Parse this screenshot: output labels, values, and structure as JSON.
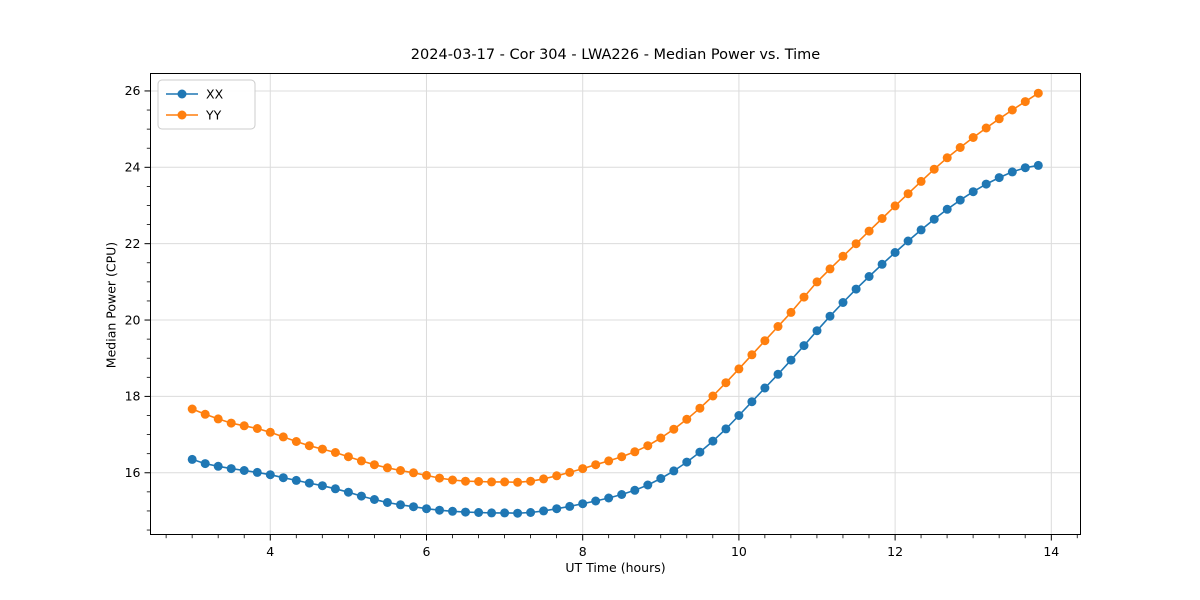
{
  "figure": {
    "background": "#ffffff",
    "text_color": "#000000",
    "grid_color": "#dcdcdc",
    "spine_color": "#000000",
    "legend": {
      "entries": [
        "XX",
        "YY"
      ],
      "position": "upper left",
      "facecolor": "#ffffff",
      "edgecolor": "#cccccc"
    }
  },
  "chart_data": {
    "type": "line",
    "title": "2024-03-17 - Cor 304 - LWA226 - Median Power vs. Time",
    "xlabel": "UT Time (hours)",
    "ylabel": "Median Power (CPU)",
    "xlim": [
      2.46,
      14.38
    ],
    "ylim": [
      14.37,
      26.47
    ],
    "xticks": [
      4,
      6,
      8,
      10,
      12,
      14
    ],
    "yticks": [
      16,
      18,
      20,
      22,
      24,
      26
    ],
    "x_minor_step": 0.3333,
    "y_minor_step": 0.5,
    "grid": true,
    "legend_position": "upper left",
    "marker": "circle",
    "x": [
      3.0,
      3.1667,
      3.3333,
      3.5,
      3.6667,
      3.8333,
      4.0,
      4.1667,
      4.3333,
      4.5,
      4.6667,
      4.8333,
      5.0,
      5.1667,
      5.3333,
      5.5,
      5.6667,
      5.8333,
      6.0,
      6.1667,
      6.3333,
      6.5,
      6.6667,
      6.8333,
      7.0,
      7.1667,
      7.3333,
      7.5,
      7.6667,
      7.8333,
      8.0,
      8.1667,
      8.3333,
      8.5,
      8.6667,
      8.8333,
      9.0,
      9.1667,
      9.3333,
      9.5,
      9.6667,
      9.8333,
      10.0,
      10.1667,
      10.3333,
      10.5,
      10.6667,
      10.8333,
      11.0,
      11.1667,
      11.3333,
      11.5,
      11.6667,
      11.8333,
      12.0,
      12.1667,
      12.3333,
      12.5,
      12.6667,
      12.8333,
      13.0,
      13.1667,
      13.3333,
      13.5,
      13.6667,
      13.8333
    ],
    "series": [
      {
        "name": "XX",
        "color": "#1f77b4",
        "values": [
          16.35,
          16.24,
          16.17,
          16.11,
          16.06,
          16.01,
          15.95,
          15.87,
          15.8,
          15.73,
          15.66,
          15.58,
          15.49,
          15.39,
          15.3,
          15.22,
          15.16,
          15.11,
          15.06,
          15.02,
          14.99,
          14.97,
          14.96,
          14.95,
          14.95,
          14.94,
          14.96,
          15.0,
          15.06,
          15.12,
          15.19,
          15.26,
          15.34,
          15.43,
          15.54,
          15.68,
          15.85,
          16.05,
          16.28,
          16.54,
          16.83,
          17.15,
          17.5,
          17.86,
          18.22,
          18.58,
          18.95,
          19.33,
          19.72,
          20.1,
          20.46,
          20.81,
          21.14,
          21.46,
          21.77,
          22.07,
          22.36,
          22.64,
          22.9,
          23.14,
          23.36,
          23.56,
          23.73,
          23.88,
          23.99,
          24.05
        ]
      },
      {
        "name": "YY",
        "color": "#ff7f0e",
        "values": [
          17.67,
          17.53,
          17.41,
          17.3,
          17.23,
          17.16,
          17.06,
          16.94,
          16.82,
          16.71,
          16.62,
          16.53,
          16.42,
          16.31,
          16.21,
          16.13,
          16.06,
          16.0,
          15.93,
          15.86,
          15.81,
          15.78,
          15.77,
          15.76,
          15.76,
          15.75,
          15.78,
          15.84,
          15.92,
          16.01,
          16.11,
          16.21,
          16.31,
          16.42,
          16.55,
          16.71,
          16.91,
          17.14,
          17.4,
          17.69,
          18.01,
          18.36,
          18.72,
          19.09,
          19.46,
          19.83,
          20.2,
          20.6,
          21.0,
          21.34,
          21.67,
          22.0,
          22.33,
          22.66,
          22.99,
          23.31,
          23.63,
          23.95,
          24.25,
          24.52,
          24.78,
          25.03,
          25.27,
          25.5,
          25.72,
          25.94
        ]
      }
    ]
  }
}
